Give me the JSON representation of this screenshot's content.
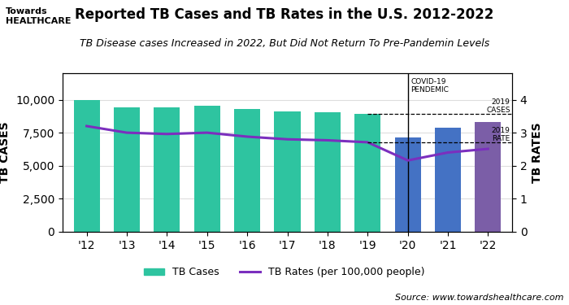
{
  "chart_data": {
    "type": "bar",
    "title": "Reported TB Cases and TB Rates in the U.S. 2012-2022",
    "subtitle": "TB Disease cases Increased in 2022, But Did Not Return To Pre-Pandemin Levels",
    "logo": "Towards\nHEALTHCARE",
    "source": "Source: www.towardshealthcare.com",
    "categories": [
      "'12",
      "'13",
      "'14",
      "'15",
      "'16",
      "'17",
      "'18",
      "'19",
      "'20",
      "'21",
      "'22"
    ],
    "series": [
      {
        "name": "TB Cases",
        "type": "bar",
        "colors": [
          "#2ec4a0",
          "#2ec4a0",
          "#2ec4a0",
          "#2ec4a0",
          "#2ec4a0",
          "#2ec4a0",
          "#2ec4a0",
          "#2ec4a0",
          "#4472c4",
          "#4472c4",
          "#7b5ea7"
        ],
        "values": [
          9945,
          9421,
          9406,
          9563,
          9272,
          9093,
          9025,
          8916,
          7163,
          7860,
          8300
        ]
      },
      {
        "name": "TB Rates (per 100,000 people)",
        "type": "line",
        "axis": "y2",
        "color": "#7B2FBE",
        "values": [
          3.2,
          3.0,
          2.96,
          3.0,
          2.88,
          2.8,
          2.77,
          2.71,
          2.16,
          2.4,
          2.51
        ]
      }
    ],
    "y_label": "TB CASES",
    "y2_label": "TB RATES",
    "ylim": [
      0,
      12000
    ],
    "yticks": [
      0,
      {
        "value": 2500,
        "label": "2,500"
      },
      {
        "value": 5000,
        "label": "5,000"
      },
      {
        "value": 7500,
        "label": "7,500"
      },
      {
        "value": 10000,
        "label": "10,000"
      }
    ],
    "y2lim": [
      0,
      4.8
    ],
    "y2ticks": [
      0,
      1,
      2,
      3,
      4
    ],
    "grid": true,
    "legend": "lower center",
    "annotations": [
      {
        "text": "2019\nCASES",
        "y": 8916,
        "line_style": "dashed"
      },
      {
        "text": "2019\nRATE",
        "y": 2.71,
        "axis": "y2",
        "line_style": "dashed"
      },
      {
        "text": "COVID-19\nPENDEMIC",
        "x": "'20",
        "line_style": "solid"
      }
    ]
  }
}
